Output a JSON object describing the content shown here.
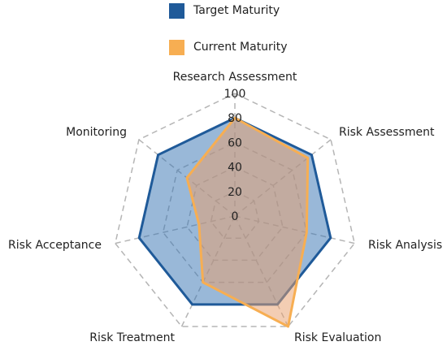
{
  "chart_data": {
    "type": "radar",
    "categories": [
      "Research Assessment",
      "Risk Assessment",
      "Risk Analysis",
      "Risk Evaluation",
      "Risk Treatment",
      "Risk Acceptance",
      "Monitoring"
    ],
    "series": [
      {
        "name": "Target Maturity",
        "values": [
          80,
          80,
          80,
          80,
          80,
          80,
          80
        ],
        "color": "#1f5a99",
        "fill": "rgba(60,118,180,0.52)"
      },
      {
        "name": "Current Maturity",
        "values": [
          80,
          76,
          60,
          100,
          60,
          30,
          50
        ],
        "color": "#f7ae52",
        "fill": "rgba(232,160,110,0.52)"
      }
    ],
    "radial_ticks": [
      "0",
      "20",
      "40",
      "60",
      "80",
      "100"
    ],
    "rlim": [
      0,
      100
    ],
    "grid": true,
    "legend_position": "top"
  }
}
